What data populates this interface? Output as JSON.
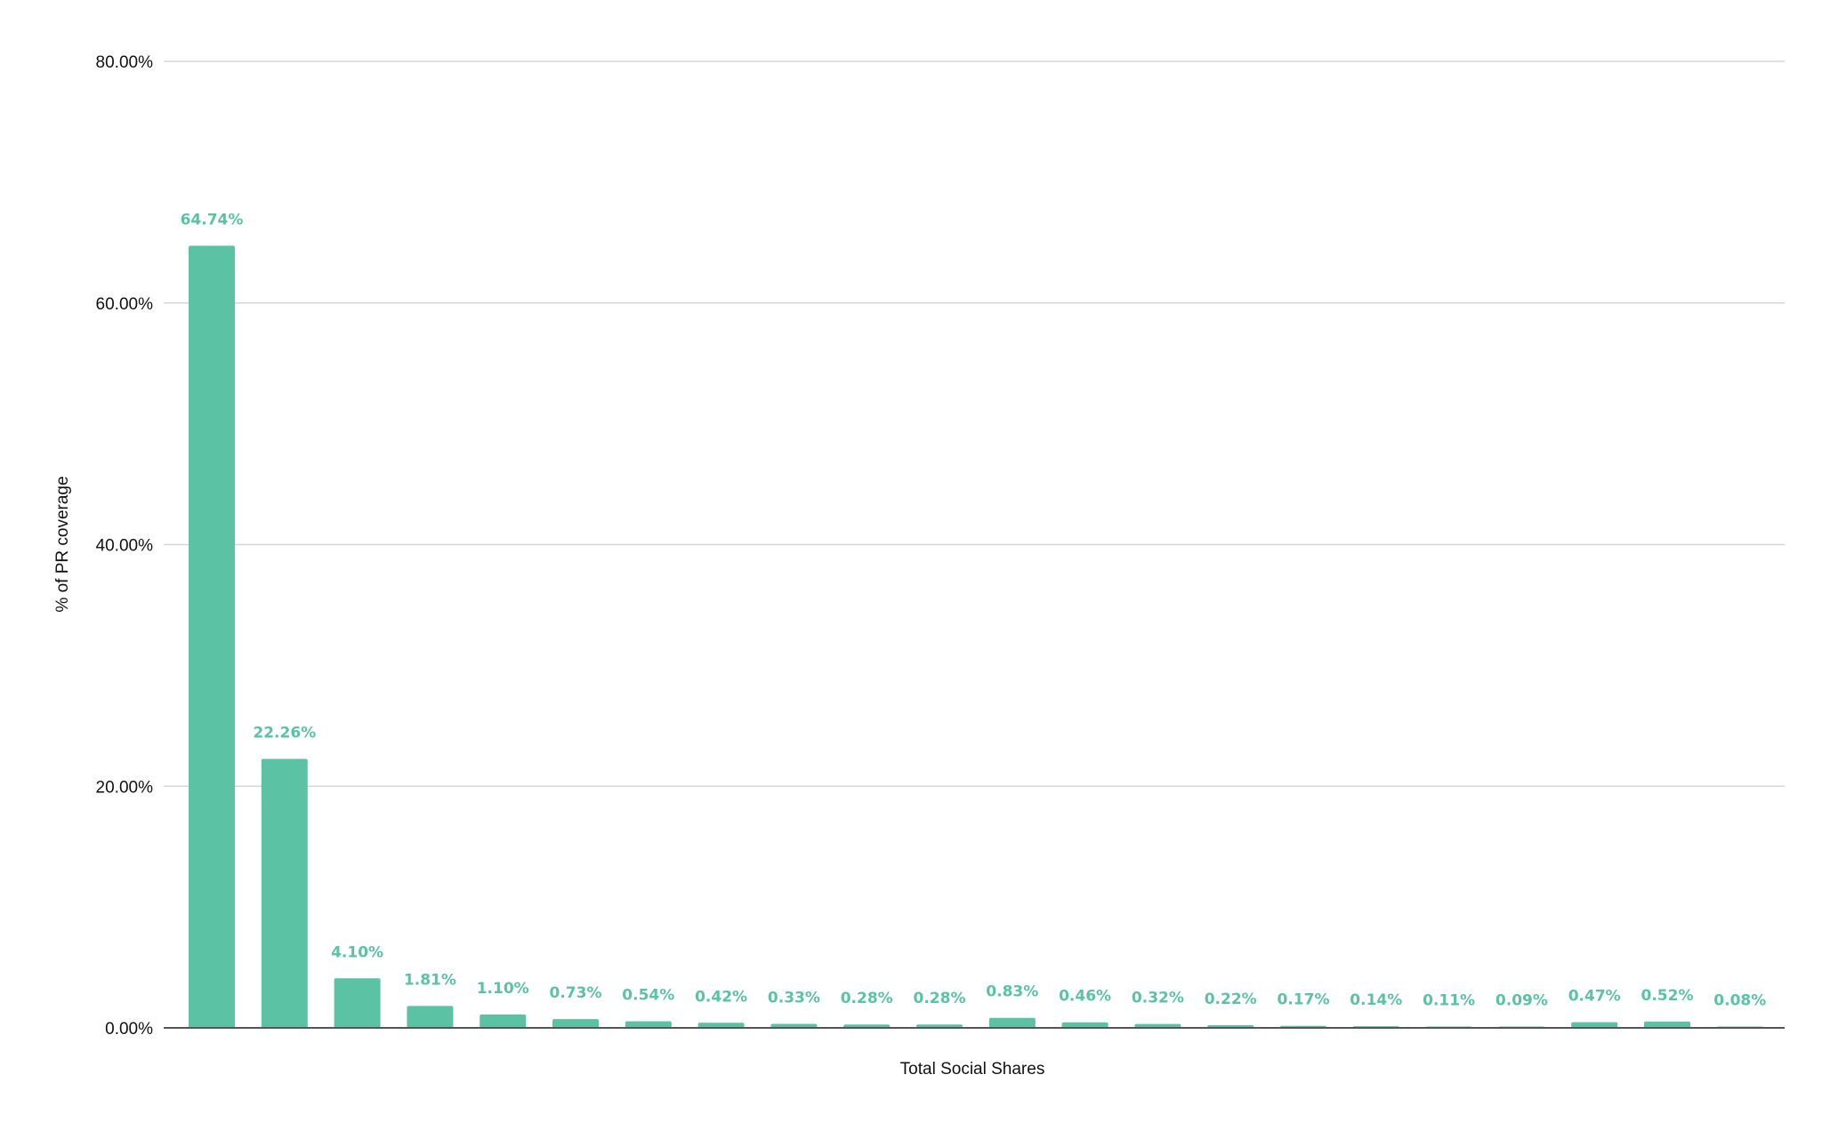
{
  "chart_data": {
    "type": "bar",
    "title": "",
    "xlabel": "Total Social Shares",
    "ylabel": "% of PR coverage",
    "ylim": [
      0,
      80
    ],
    "y_ticks": [
      "0.00%",
      "20.00%",
      "40.00%",
      "60.00%",
      "80.00%"
    ],
    "y_tick_values": [
      0,
      20,
      40,
      60,
      80
    ],
    "grid": true,
    "legend": "none",
    "bar_color": "#5bc2a4",
    "label_color": "#5bc2a4",
    "values": [
      64.74,
      22.26,
      4.1,
      1.81,
      1.1,
      0.73,
      0.54,
      0.42,
      0.33,
      0.28,
      0.28,
      0.83,
      0.46,
      0.32,
      0.22,
      0.17,
      0.14,
      0.11,
      0.09,
      0.47,
      0.52,
      0.08
    ],
    "data_labels": [
      "64.74%",
      "22.26%",
      "4.10%",
      "1.81%",
      "1.10%",
      "0.73%",
      "0.54%",
      "0.42%",
      "0.33%",
      "0.28%",
      "0.28%",
      "0.83%",
      "0.46%",
      "0.32%",
      "0.22%",
      "0.17%",
      "0.14%",
      "0.11%",
      "0.09%",
      "0.47%",
      "0.52%",
      "0.08%"
    ]
  }
}
